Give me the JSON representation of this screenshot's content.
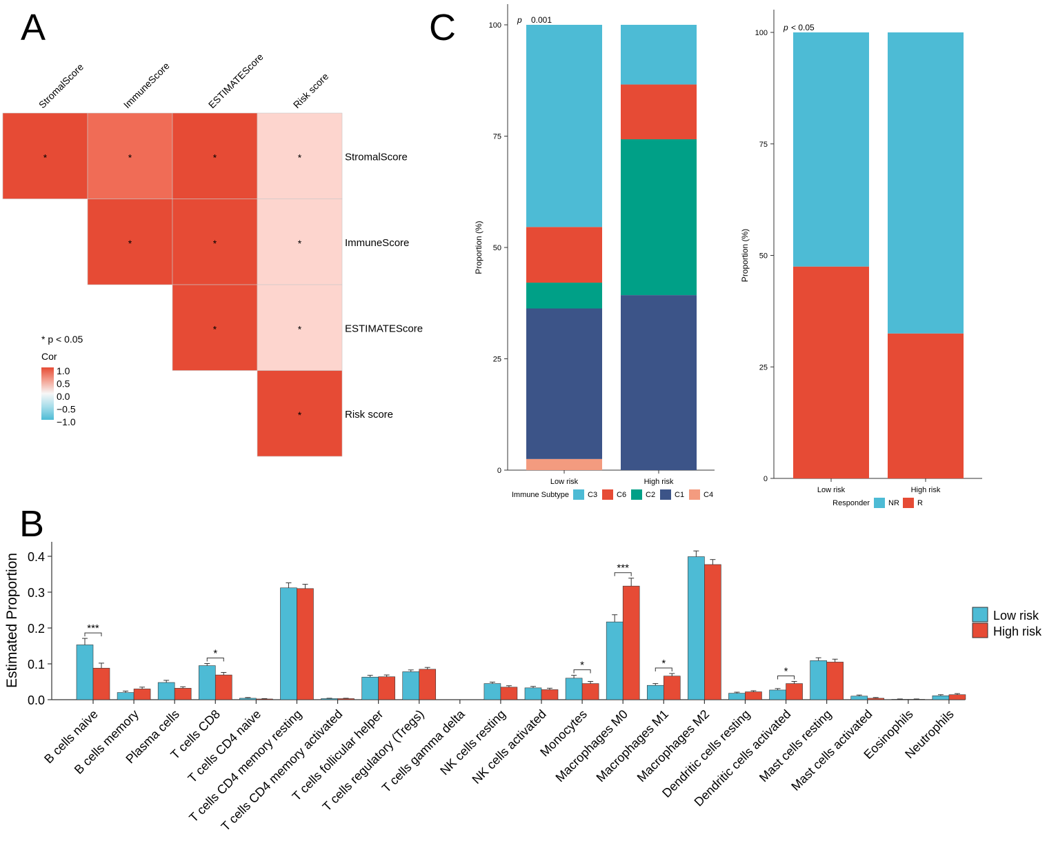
{
  "panels": {
    "A": "A",
    "B": "B",
    "C": "C"
  },
  "colors": {
    "low_risk": "#4DBBD5",
    "high_risk": "#E64B35",
    "C3": "#4DBBD5",
    "C6": "#E64B35",
    "C2": "#00A087",
    "C1": "#3C5488",
    "C4": "#F39B7F",
    "heat_strong": "#E64B35",
    "heat_mid": "#F06C56",
    "heat_weak": "#FDD5CE",
    "heat_neutral": "#F7F7F7",
    "heat_neg": "#4DBBD5"
  },
  "chart_data": [
    {
      "id": "A",
      "type": "heatmap",
      "variables": [
        "StromalScore",
        "ImmuneScore",
        "ESTIMATEScore",
        "Risk score"
      ],
      "cells": [
        {
          "row": "StromalScore",
          "col": "StromalScore",
          "cor": 1.0,
          "mark": "*"
        },
        {
          "row": "StromalScore",
          "col": "ImmuneScore",
          "cor": 0.7,
          "mark": "*"
        },
        {
          "row": "StromalScore",
          "col": "ESTIMATEScore",
          "cor": 0.95,
          "mark": "*"
        },
        {
          "row": "StromalScore",
          "col": "Risk score",
          "cor": 0.2,
          "mark": "*"
        },
        {
          "row": "ImmuneScore",
          "col": "ImmuneScore",
          "cor": 1.0,
          "mark": "*"
        },
        {
          "row": "ImmuneScore",
          "col": "ESTIMATEScore",
          "cor": 0.95,
          "mark": "*"
        },
        {
          "row": "ImmuneScore",
          "col": "Risk score",
          "cor": 0.2,
          "mark": "*"
        },
        {
          "row": "ESTIMATEScore",
          "col": "ESTIMATEScore",
          "cor": 1.0,
          "mark": "*"
        },
        {
          "row": "ESTIMATEScore",
          "col": "Risk score",
          "cor": 0.2,
          "mark": "*"
        },
        {
          "row": "Risk score",
          "col": "Risk score",
          "cor": 1.0,
          "mark": "*"
        }
      ],
      "note": "* p < 0.05",
      "legend_title": "Cor",
      "legend_ticks": [
        "1.0",
        "0.5",
        "0.0",
        "−0.5",
        "−1.0"
      ],
      "range": [
        -1.0,
        1.0
      ]
    },
    {
      "id": "B",
      "type": "bar",
      "ylabel": "Estimated Proportion",
      "ylim": [
        0,
        0.44
      ],
      "yticks": [
        0.0,
        0.1,
        0.2,
        0.3,
        0.4
      ],
      "ytick_labels": [
        "0.0",
        "0.1",
        "0.2",
        "0.3",
        "0.4"
      ],
      "categories": [
        "B cells naive",
        "B cells memory",
        "Plasma cells",
        "T cells CD8",
        "T cells CD4 naive",
        "T cells CD4 memory resting",
        "T cells CD4 memory activated",
        "T cells follicular helper",
        "T cells regulatory (Tregs)",
        "T cells gamma delta",
        "NK cells resting",
        "NK cells activated",
        "Monocytes",
        "Macrophages M0",
        "Macrophages M1",
        "Macrophages M2",
        "Dendritic cells resting",
        "Dendritic cells activated",
        "Mast cells resting",
        "Mast cells activated",
        "Eosinophils",
        "Neutrophils"
      ],
      "series": [
        {
          "name": "Low risk",
          "values": [
            0.153,
            0.02,
            0.048,
            0.095,
            0.004,
            0.312,
            0.003,
            0.063,
            0.078,
            0.0,
            0.045,
            0.033,
            0.06,
            0.217,
            0.04,
            0.399,
            0.018,
            0.027,
            0.109,
            0.01,
            0.001,
            0.011
          ],
          "errors": [
            0.018,
            0.004,
            0.006,
            0.006,
            0.002,
            0.014,
            0.001,
            0.005,
            0.005,
            0.0,
            0.004,
            0.004,
            0.008,
            0.02,
            0.005,
            0.016,
            0.003,
            0.004,
            0.008,
            0.003,
            0.001,
            0.003
          ]
        },
        {
          "name": "High risk",
          "values": [
            0.088,
            0.03,
            0.032,
            0.069,
            0.002,
            0.31,
            0.003,
            0.064,
            0.085,
            0.0,
            0.035,
            0.028,
            0.045,
            0.317,
            0.066,
            0.377,
            0.022,
            0.045,
            0.105,
            0.004,
            0.001,
            0.014
          ],
          "errors": [
            0.014,
            0.005,
            0.004,
            0.007,
            0.001,
            0.012,
            0.001,
            0.005,
            0.005,
            0.0,
            0.004,
            0.004,
            0.006,
            0.022,
            0.007,
            0.014,
            0.003,
            0.006,
            0.008,
            0.002,
            0.001,
            0.003
          ]
        }
      ],
      "significance": [
        {
          "category": "B cells naive",
          "label": "***"
        },
        {
          "category": "T cells CD8",
          "label": "*"
        },
        {
          "category": "Monocytes",
          "label": "*"
        },
        {
          "category": "Macrophages M0",
          "label": "***"
        },
        {
          "category": "Macrophages M1",
          "label": "*"
        },
        {
          "category": "Dendritic cells activated",
          "label": "*"
        }
      ],
      "legend": [
        "Low risk",
        "High risk"
      ]
    },
    {
      "id": "C-left",
      "type": "bar",
      "stacked": true,
      "ylabel": "Proportion (%)",
      "ylim": [
        0,
        100
      ],
      "yticks": [
        "0",
        "25",
        "50",
        "75",
        "100"
      ],
      "categories": [
        "Low risk",
        "High risk"
      ],
      "series": [
        {
          "name": "C4",
          "values": [
            2.5,
            0
          ]
        },
        {
          "name": "C1",
          "values": [
            33.8,
            39.3
          ]
        },
        {
          "name": "C2",
          "values": [
            5.8,
            35.0
          ]
        },
        {
          "name": "C6",
          "values": [
            12.5,
            12.3
          ]
        },
        {
          "name": "C3",
          "values": [
            45.4,
            13.4
          ]
        }
      ],
      "pvalue_label": "p",
      "pvalue": "0.001",
      "legend_title": "Immune Subtype",
      "legend": [
        "C3",
        "C6",
        "C2",
        "C1",
        "C4"
      ]
    },
    {
      "id": "C-right",
      "type": "bar",
      "stacked": true,
      "ylabel": "Proportion (%)",
      "ylim": [
        0,
        100
      ],
      "yticks": [
        "0",
        "25",
        "50",
        "75",
        "100"
      ],
      "categories": [
        "Low risk",
        "High risk"
      ],
      "series": [
        {
          "name": "R",
          "values": [
            47.5,
            32.5
          ]
        },
        {
          "name": "NR",
          "values": [
            52.5,
            67.5
          ]
        }
      ],
      "pvalue_label": "p",
      "pvalue": "< 0.05",
      "legend_title": "Responder",
      "legend": [
        "NR",
        "R"
      ]
    }
  ]
}
